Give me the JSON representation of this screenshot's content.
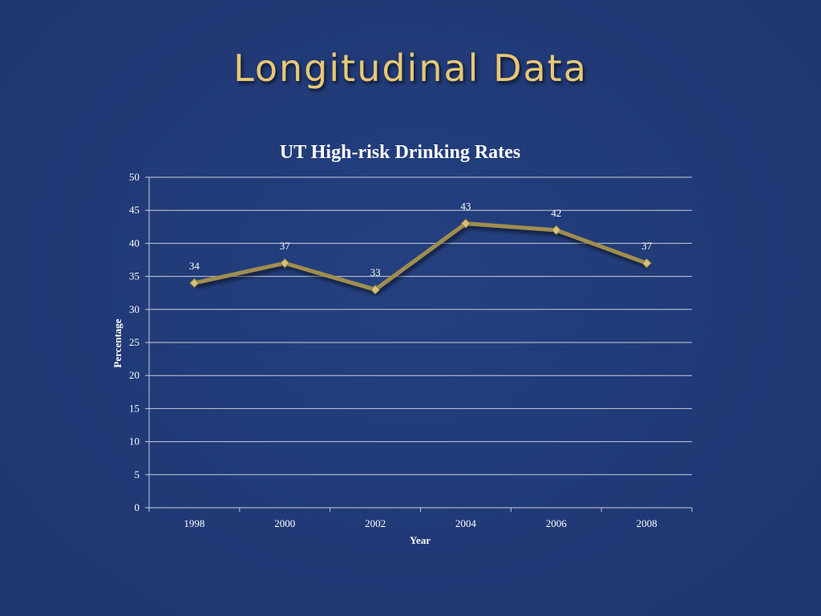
{
  "slide": {
    "title": "Longitudinal Data"
  },
  "colors": {
    "background": "#213a77",
    "title": "#e8c875",
    "line": "#a08e50",
    "marker": "#d8c27a",
    "text": "#ffffff",
    "grid": "#c9cdd8"
  },
  "chart_data": {
    "type": "line",
    "title": "UT High-risk Drinking Rates",
    "xlabel": "Year",
    "ylabel": "Percentage",
    "categories": [
      "1998",
      "2000",
      "2002",
      "2004",
      "2006",
      "2008"
    ],
    "series": [
      {
        "values": [
          34,
          37,
          33,
          43,
          42,
          37
        ],
        "data_labels": [
          "34",
          "37",
          "33",
          "43",
          "42",
          "37"
        ],
        "marker": "diamond"
      }
    ],
    "ylim": [
      0,
      50
    ],
    "yticks": [
      "0",
      "5",
      "10",
      "15",
      "20",
      "25",
      "30",
      "35",
      "40",
      "45",
      "50"
    ],
    "grid": true,
    "legend": "none"
  }
}
